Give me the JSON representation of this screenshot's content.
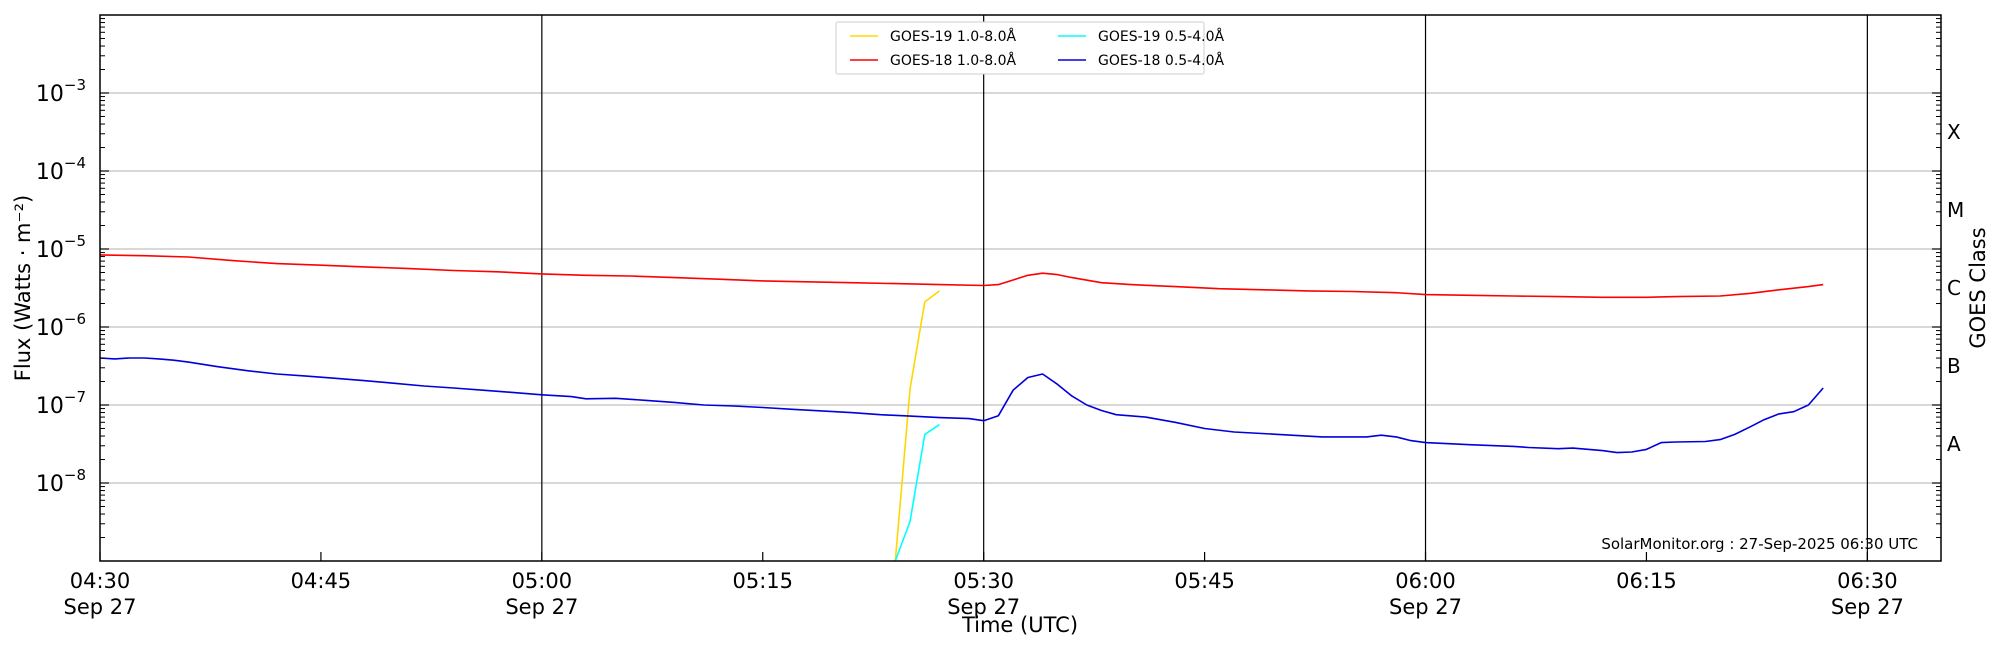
{
  "chart_data": {
    "type": "line",
    "xlabel": "Time (UTC)",
    "ylabel": "Flux (Watts · m⁻²)",
    "right_ylabel": "GOES Class",
    "y_scale": "log",
    "ylim": [
      1e-09,
      0.01
    ],
    "xlim": [
      "04:30",
      "06:35"
    ],
    "grid": "horizontal at each decade; vertical lines every 30 minutes",
    "legend_position": "top-center",
    "credit": "SolarMonitor.org : 27-Sep-2025 06:30 UTC",
    "x_ticks": [
      {
        "time": "04:30",
        "line1": "04:30",
        "line2": "Sep 27"
      },
      {
        "time": "04:45",
        "line1": "04:45",
        "line2": ""
      },
      {
        "time": "05:00",
        "line1": "05:00",
        "line2": "Sep 27"
      },
      {
        "time": "05:15",
        "line1": "05:15",
        "line2": ""
      },
      {
        "time": "05:30",
        "line1": "05:30",
        "line2": "Sep 27"
      },
      {
        "time": "05:45",
        "line1": "05:45",
        "line2": ""
      },
      {
        "time": "06:00",
        "line1": "06:00",
        "line2": "Sep 27"
      },
      {
        "time": "06:15",
        "line1": "06:15",
        "line2": ""
      },
      {
        "time": "06:30",
        "line1": "06:30",
        "line2": "Sep 27"
      }
    ],
    "y_ticks": [
      {
        "value": 0.001,
        "base": "10",
        "exp": "−3"
      },
      {
        "value": 0.0001,
        "base": "10",
        "exp": "−4"
      },
      {
        "value": 1e-05,
        "base": "10",
        "exp": "−5"
      },
      {
        "value": 1e-06,
        "base": "10",
        "exp": "−6"
      },
      {
        "value": 1e-07,
        "base": "10",
        "exp": "−7"
      },
      {
        "value": 1e-08,
        "base": "10",
        "exp": "−8"
      }
    ],
    "goes_classes": [
      {
        "label": "X",
        "value": 0.000316
      },
      {
        "label": "M",
        "value": 3.16e-05
      },
      {
        "label": "C",
        "value": 3.16e-06
      },
      {
        "label": "B",
        "value": 3.16e-07
      },
      {
        "label": "A",
        "value": 3.16e-08
      }
    ],
    "series": [
      {
        "name": "GOES-19 1.0-8.0Å",
        "color": "#ffd700",
        "points": [
          [
            "05:24",
            1e-09
          ],
          [
            "05:25",
            1.6e-07
          ],
          [
            "05:26",
            2.1e-06
          ],
          [
            "05:27",
            2.9e-06
          ]
        ]
      },
      {
        "name": "GOES-19 0.5-4.0Å",
        "color": "#00ffff",
        "points": [
          [
            "05:24",
            1e-09
          ],
          [
            "05:25",
            3.2e-09
          ],
          [
            "05:26",
            4.2e-08
          ],
          [
            "05:27",
            5.6e-08
          ]
        ]
      },
      {
        "name": "GOES-18 1.0-8.0Å",
        "color": "#ff0000",
        "points": [
          [
            "04:30",
            8.4e-06
          ],
          [
            "04:33",
            8.2e-06
          ],
          [
            "04:36",
            7.9e-06
          ],
          [
            "04:39",
            7.1e-06
          ],
          [
            "04:42",
            6.5e-06
          ],
          [
            "04:45",
            6.2e-06
          ],
          [
            "04:48",
            5.9e-06
          ],
          [
            "04:51",
            5.6e-06
          ],
          [
            "04:54",
            5.3e-06
          ],
          [
            "04:57",
            5.1e-06
          ],
          [
            "05:00",
            4.8e-06
          ],
          [
            "05:03",
            4.6e-06
          ],
          [
            "05:06",
            4.5e-06
          ],
          [
            "05:09",
            4.3e-06
          ],
          [
            "05:12",
            4.1e-06
          ],
          [
            "05:15",
            3.9e-06
          ],
          [
            "05:18",
            3.8e-06
          ],
          [
            "05:21",
            3.7e-06
          ],
          [
            "05:24",
            3.6e-06
          ],
          [
            "05:27",
            3.5e-06
          ],
          [
            "05:30",
            3.4e-06
          ],
          [
            "05:31",
            3.5e-06
          ],
          [
            "05:32",
            4e-06
          ],
          [
            "05:33",
            4.6e-06
          ],
          [
            "05:34",
            4.9e-06
          ],
          [
            "05:35",
            4.7e-06
          ],
          [
            "05:36",
            4.3e-06
          ],
          [
            "05:38",
            3.7e-06
          ],
          [
            "05:40",
            3.5e-06
          ],
          [
            "05:43",
            3.3e-06
          ],
          [
            "05:46",
            3.1e-06
          ],
          [
            "05:49",
            3e-06
          ],
          [
            "05:52",
            2.9e-06
          ],
          [
            "05:55",
            2.85e-06
          ],
          [
            "05:58",
            2.75e-06
          ],
          [
            "06:00",
            2.6e-06
          ],
          [
            "06:03",
            2.55e-06
          ],
          [
            "06:06",
            2.5e-06
          ],
          [
            "06:09",
            2.45e-06
          ],
          [
            "06:12",
            2.4e-06
          ],
          [
            "06:15",
            2.4e-06
          ],
          [
            "06:17",
            2.45e-06
          ],
          [
            "06:20",
            2.5e-06
          ],
          [
            "06:22",
            2.7e-06
          ],
          [
            "06:24",
            3e-06
          ],
          [
            "06:26",
            3.3e-06
          ],
          [
            "06:27",
            3.5e-06
          ]
        ]
      },
      {
        "name": "GOES-18 0.5-4.0Å",
        "color": "#0000dd",
        "points": [
          [
            "04:30",
            4e-07
          ],
          [
            "04:31",
            3.9e-07
          ],
          [
            "04:32",
            4e-07
          ],
          [
            "04:33",
            4e-07
          ],
          [
            "04:34",
            3.9e-07
          ],
          [
            "04:35",
            3.75e-07
          ],
          [
            "04:36",
            3.55e-07
          ],
          [
            "04:38",
            3.1e-07
          ],
          [
            "04:40",
            2.75e-07
          ],
          [
            "04:42",
            2.5e-07
          ],
          [
            "04:44",
            2.35e-07
          ],
          [
            "04:46",
            2.2e-07
          ],
          [
            "04:48",
            2.05e-07
          ],
          [
            "04:50",
            1.9e-07
          ],
          [
            "04:52",
            1.75e-07
          ],
          [
            "04:54",
            1.65e-07
          ],
          [
            "04:56",
            1.55e-07
          ],
          [
            "04:58",
            1.45e-07
          ],
          [
            "05:00",
            1.35e-07
          ],
          [
            "05:02",
            1.28e-07
          ],
          [
            "05:03",
            1.2e-07
          ],
          [
            "05:05",
            1.22e-07
          ],
          [
            "05:07",
            1.15e-07
          ],
          [
            "05:09",
            1.08e-07
          ],
          [
            "05:11",
            1e-07
          ],
          [
            "05:13",
            9.7e-08
          ],
          [
            "05:15",
            9.3e-08
          ],
          [
            "05:17",
            8.8e-08
          ],
          [
            "05:19",
            8.4e-08
          ],
          [
            "05:21",
            8e-08
          ],
          [
            "05:23",
            7.5e-08
          ],
          [
            "05:25",
            7.2e-08
          ],
          [
            "05:27",
            6.9e-08
          ],
          [
            "05:29",
            6.7e-08
          ],
          [
            "05:30",
            6.3e-08
          ],
          [
            "05:31",
            7.3e-08
          ],
          [
            "05:32",
            1.55e-07
          ],
          [
            "05:33",
            2.25e-07
          ],
          [
            "05:34",
            2.5e-07
          ],
          [
            "05:35",
            1.85e-07
          ],
          [
            "05:36",
            1.3e-07
          ],
          [
            "05:37",
            1e-07
          ],
          [
            "05:38",
            8.5e-08
          ],
          [
            "05:39",
            7.5e-08
          ],
          [
            "05:41",
            7e-08
          ],
          [
            "05:43",
            6e-08
          ],
          [
            "05:45",
            5e-08
          ],
          [
            "05:47",
            4.5e-08
          ],
          [
            "05:50",
            4.2e-08
          ],
          [
            "05:53",
            3.9e-08
          ],
          [
            "05:56",
            3.9e-08
          ],
          [
            "05:57",
            4.1e-08
          ],
          [
            "05:58",
            3.9e-08
          ],
          [
            "05:59",
            3.5e-08
          ],
          [
            "06:00",
            3.3e-08
          ],
          [
            "06:03",
            3.1e-08
          ],
          [
            "06:06",
            2.95e-08
          ],
          [
            "06:07",
            2.85e-08
          ],
          [
            "06:09",
            2.75e-08
          ],
          [
            "06:10",
            2.8e-08
          ],
          [
            "06:12",
            2.6e-08
          ],
          [
            "06:13",
            2.45e-08
          ],
          [
            "06:14",
            2.5e-08
          ],
          [
            "06:15",
            2.7e-08
          ],
          [
            "06:16",
            3.3e-08
          ],
          [
            "06:17",
            3.35e-08
          ],
          [
            "06:19",
            3.4e-08
          ],
          [
            "06:20",
            3.6e-08
          ],
          [
            "06:21",
            4.2e-08
          ],
          [
            "06:22",
            5.2e-08
          ],
          [
            "06:23",
            6.5e-08
          ],
          [
            "06:24",
            7.7e-08
          ],
          [
            "06:25",
            8.2e-08
          ],
          [
            "06:26",
            1e-07
          ],
          [
            "06:27",
            1.65e-07
          ]
        ]
      }
    ]
  }
}
